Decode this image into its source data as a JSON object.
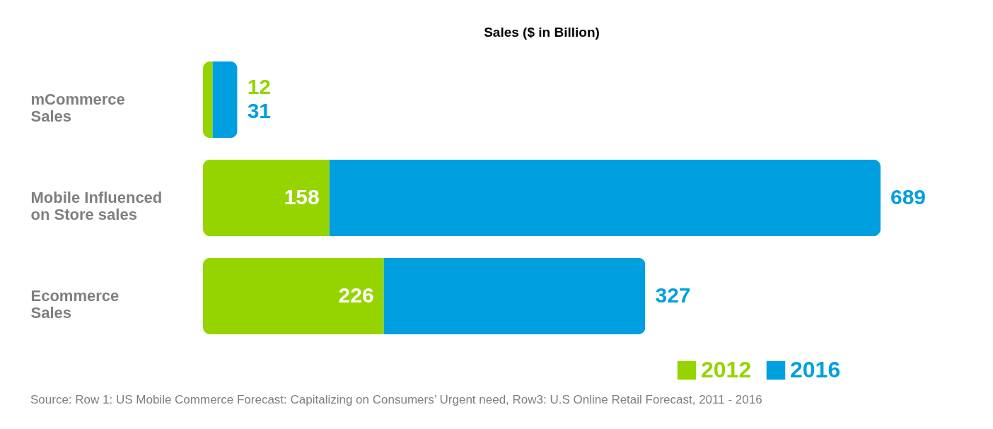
{
  "chart_data": {
    "type": "bar",
    "orientation": "horizontal",
    "stacked": true,
    "title": "Sales ($ in Billion)",
    "categories": [
      "mCommerce Sales",
      "Mobile Influenced on Store sales",
      "Ecommerce Sales"
    ],
    "series": [
      {
        "name": "2012",
        "color": "#96d400",
        "values": [
          12,
          158,
          226
        ]
      },
      {
        "name": "2016",
        "color": "#009fdf",
        "values": [
          31,
          689,
          327
        ]
      }
    ],
    "data_labels": true,
    "legend": "bottom right",
    "annotations": [
      "Source: Row 1: US Mobile Commerce Forecast: Capitalizing on Consumers’ Urgent need, Row3: U.S Online Retail Forecast, 2011 - 2016"
    ]
  }
}
